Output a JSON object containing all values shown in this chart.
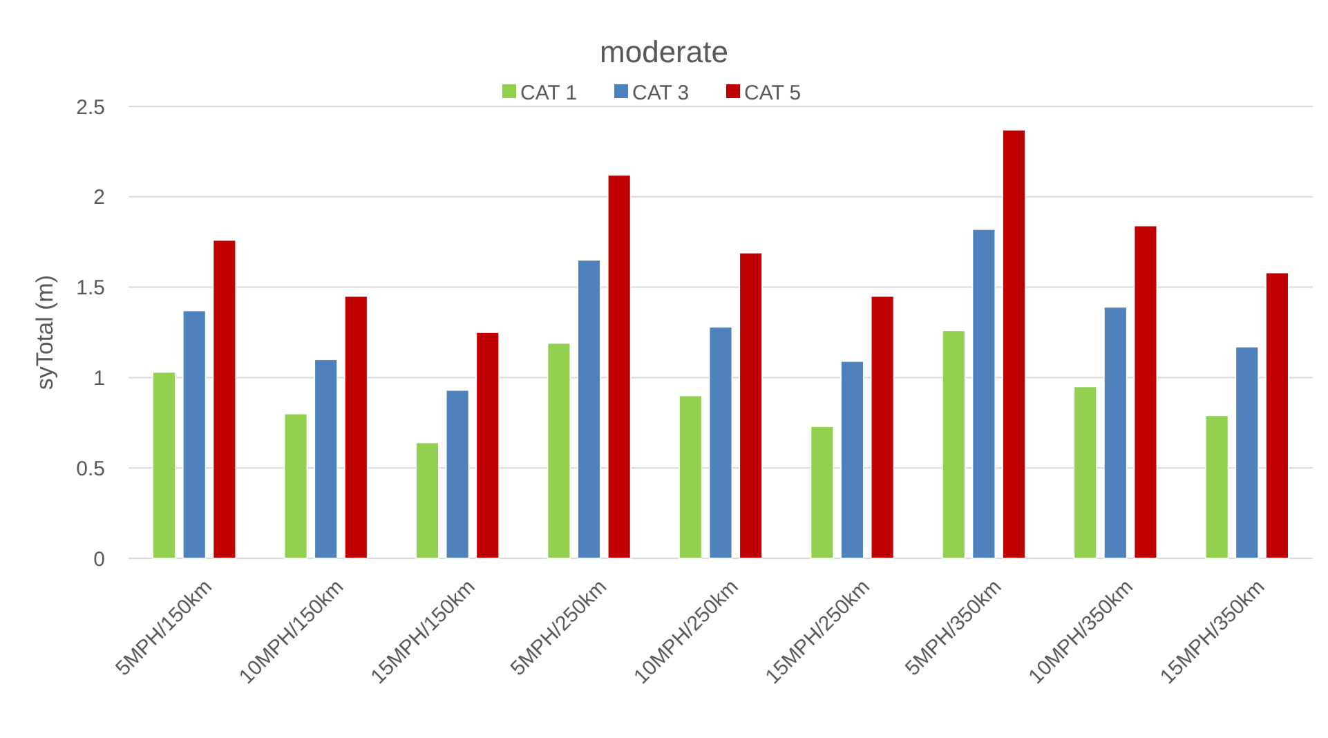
{
  "chart_data": {
    "type": "bar",
    "title": "moderate",
    "ylabel": "syTotal (m)",
    "categories": [
      "5MPH/150km",
      "10MPH/150km",
      "15MPH/150km",
      "5MPH/250km",
      "10MPH/250km",
      "15MPH/250km",
      "5MPH/350km",
      "10MPH/350km",
      "15MPH/350km"
    ],
    "series": [
      {
        "name": "CAT 1",
        "color": "#92d050",
        "values": [
          1.03,
          0.8,
          0.64,
          1.19,
          0.9,
          0.73,
          1.26,
          0.95,
          0.79
        ]
      },
      {
        "name": "CAT 3",
        "color": "#4f81bd",
        "values": [
          1.37,
          1.1,
          0.93,
          1.65,
          1.28,
          1.09,
          1.82,
          1.39,
          1.17
        ]
      },
      {
        "name": "CAT 5",
        "color": "#c00000",
        "values": [
          1.76,
          1.45,
          1.25,
          2.12,
          1.69,
          1.45,
          2.37,
          1.84,
          1.58
        ]
      }
    ],
    "ylim": [
      0,
      2.5
    ],
    "yticks": [
      0,
      0.5,
      1,
      1.5,
      2,
      2.5
    ],
    "grid": "y",
    "legend": "top"
  }
}
